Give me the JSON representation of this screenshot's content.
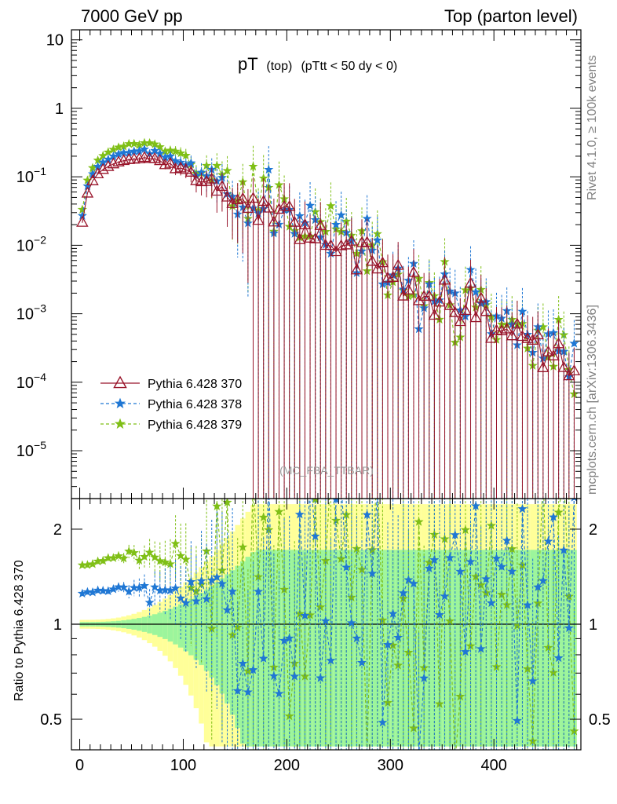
{
  "header": {
    "left": "7000 GeV pp",
    "right": "Top (parton level)"
  },
  "side_labels": {
    "rivet": "Rivet 4.1.0, ≥ 100k events",
    "mcplots": "mcplots.cern.ch [arXiv:1306.3436]"
  },
  "colors": {
    "s370": "#99142a",
    "s378": "#1f77d4",
    "s379": "#7fbf16",
    "band_inner": "#9cf59c",
    "band_outer": "#ffff99",
    "watermark": "#999999"
  },
  "chart_data": [
    {
      "type": "line",
      "scale": "log",
      "title": "pT",
      "title_sub1": "(top)",
      "title_sub2": "(pTtt < 50 dy < 0)",
      "watermark": "(MC_FBA_TTBAR)",
      "xlim": [
        -8,
        484
      ],
      "ylim": [
        2e-06,
        14
      ],
      "yticks": [
        {
          "value": 10,
          "label": "10"
        },
        {
          "value": 1,
          "label": "1"
        },
        {
          "value": 0.1,
          "base": "10",
          "exp": "−1"
        },
        {
          "value": 0.01,
          "base": "10",
          "exp": "−2"
        },
        {
          "value": 0.001,
          "base": "10",
          "exp": "−3"
        },
        {
          "value": 0.0001,
          "base": "10",
          "exp": "−4"
        },
        {
          "value": 1e-05,
          "base": "10",
          "exp": "−5"
        }
      ],
      "legend_position": "bottom-left",
      "series": [
        {
          "name": "Pythia 6.428 370",
          "key": "s370",
          "marker": "triangle",
          "dash": "solid"
        },
        {
          "name": "Pythia 6.428 378",
          "key": "s378",
          "marker": "star",
          "dash": "dashed"
        },
        {
          "name": "Pythia 6.428 379",
          "key": "s379",
          "marker": "star",
          "dash": "dashed"
        }
      ]
    },
    {
      "type": "line",
      "scale": "log",
      "ylabel": "Ratio to Pythia 6.428 370",
      "xlim": [
        -8,
        484
      ],
      "ylim": [
        0.4,
        2.5
      ],
      "xticks": [
        0,
        100,
        200,
        300,
        400
      ],
      "yticks": [
        {
          "value": 2,
          "label": "2"
        },
        {
          "value": 1,
          "label": "1"
        },
        {
          "value": 0.5,
          "label": "0.5"
        }
      ]
    }
  ]
}
